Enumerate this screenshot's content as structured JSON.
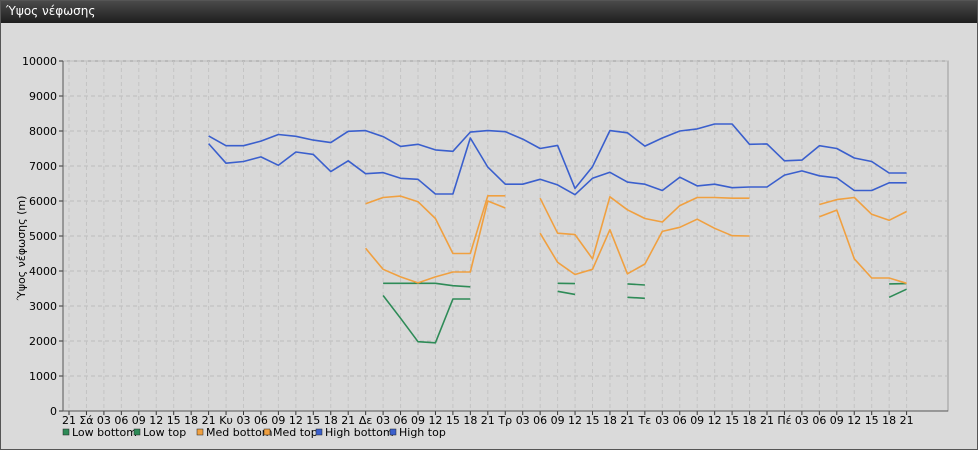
{
  "window": {
    "title": "Ύψος νέφωσης"
  },
  "chart_data": {
    "type": "line",
    "title": "",
    "xlabel": "",
    "ylabel": "Ύψος νέφωσης (m)",
    "ylim": [
      0,
      10000
    ],
    "yticks": [
      0,
      1000,
      2000,
      3000,
      4000,
      5000,
      6000,
      7000,
      8000,
      9000,
      10000
    ],
    "grid": true,
    "legend_position": "bottom-left",
    "categories": [
      "21",
      "Σά",
      "03",
      "06",
      "09",
      "12",
      "15",
      "18",
      "21",
      "Κυ",
      "03",
      "06",
      "09",
      "12",
      "15",
      "18",
      "21",
      "Δε",
      "03",
      "06",
      "09",
      "12",
      "15",
      "18",
      "21",
      "Τρ",
      "03",
      "06",
      "09",
      "12",
      "15",
      "18",
      "21",
      "Τε",
      "03",
      "06",
      "09",
      "12",
      "15",
      "18",
      "21",
      "Πέ",
      "03",
      "06",
      "09",
      "12",
      "15",
      "18",
      "21"
    ],
    "series": [
      {
        "name": "Low bottom",
        "color": "#2e8b57",
        "values": [
          null,
          null,
          null,
          null,
          null,
          null,
          null,
          null,
          null,
          null,
          null,
          null,
          null,
          null,
          null,
          null,
          null,
          null,
          3300,
          2650,
          1980,
          1950,
          3200,
          3200,
          null,
          null,
          null,
          null,
          3420,
          3330,
          null,
          null,
          3250,
          3220,
          null,
          null,
          null,
          null,
          null,
          null,
          null,
          null,
          null,
          null,
          null,
          null,
          null,
          3250,
          3480
        ]
      },
      {
        "name": "Low top",
        "color": "#2e8b57",
        "values": [
          null,
          null,
          null,
          null,
          null,
          null,
          null,
          null,
          null,
          null,
          null,
          null,
          null,
          null,
          null,
          null,
          null,
          null,
          3650,
          3650,
          3650,
          3650,
          3580,
          3550,
          null,
          null,
          null,
          null,
          3650,
          3640,
          null,
          null,
          3630,
          3600,
          null,
          null,
          null,
          null,
          null,
          null,
          null,
          null,
          null,
          null,
          null,
          null,
          null,
          3630,
          3640
        ]
      },
      {
        "name": "Med bottom",
        "color": "#f0a040",
        "values": [
          null,
          null,
          null,
          null,
          null,
          null,
          null,
          null,
          null,
          null,
          null,
          null,
          null,
          null,
          null,
          null,
          null,
          4650,
          4050,
          3830,
          3660,
          3830,
          3970,
          3970,
          6000,
          5800,
          null,
          5080,
          4250,
          3900,
          4050,
          5180,
          3920,
          4200,
          5130,
          5250,
          5480,
          5220,
          5010,
          5000,
          null,
          null,
          null,
          5550,
          5740,
          4350,
          3800,
          3800,
          3650
        ]
      },
      {
        "name": "Med top",
        "color": "#f0a040",
        "values": [
          null,
          null,
          null,
          null,
          null,
          null,
          null,
          null,
          null,
          null,
          null,
          null,
          null,
          null,
          null,
          null,
          null,
          5920,
          6100,
          6140,
          5980,
          5500,
          4500,
          4500,
          6150,
          6150,
          null,
          6080,
          5080,
          5040,
          4350,
          6120,
          5750,
          5500,
          5400,
          5870,
          6100,
          6100,
          6080,
          6080,
          null,
          null,
          null,
          5900,
          6040,
          6100,
          5620,
          5450,
          5700
        ]
      },
      {
        "name": "High bottom",
        "color": "#3a5fcd",
        "values": [
          null,
          null,
          null,
          null,
          null,
          null,
          null,
          null,
          7640,
          7080,
          7130,
          7260,
          7020,
          7400,
          7330,
          6840,
          7150,
          6780,
          6810,
          6650,
          6620,
          6200,
          6200,
          7800,
          6970,
          6480,
          6480,
          6620,
          6460,
          6180,
          6650,
          6820,
          6540,
          6480,
          6300,
          6680,
          6430,
          6480,
          6380,
          6400,
          6400,
          6740,
          6860,
          6720,
          6660,
          6300,
          6300,
          6520,
          6520
        ]
      },
      {
        "name": "High top",
        "color": "#3a5fcd",
        "values": [
          null,
          null,
          null,
          null,
          null,
          null,
          null,
          null,
          7860,
          7580,
          7580,
          7710,
          7900,
          7850,
          7740,
          7670,
          7990,
          8010,
          7840,
          7560,
          7620,
          7460,
          7420,
          7970,
          8010,
          7980,
          7770,
          7500,
          7590,
          6360,
          6980,
          8010,
          7950,
          7570,
          7800,
          8000,
          8060,
          8200,
          8200,
          7620,
          7630,
          7150,
          7170,
          7580,
          7500,
          7230,
          7130,
          6800,
          6800
        ]
      }
    ]
  }
}
